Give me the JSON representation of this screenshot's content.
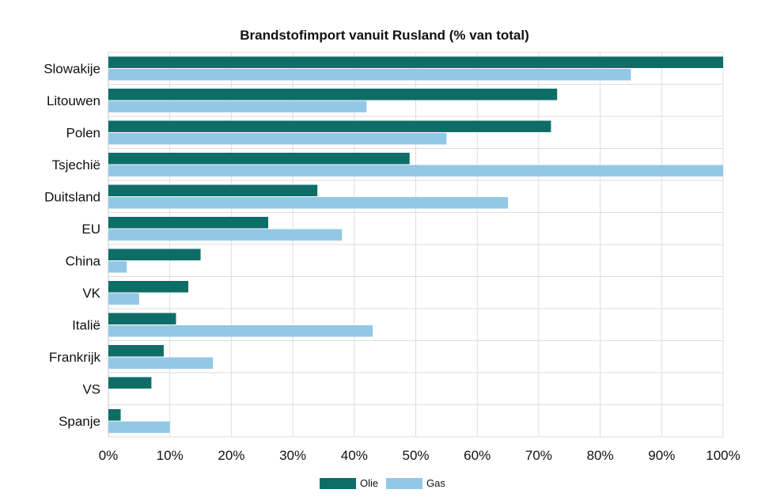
{
  "chart_data": {
    "type": "bar",
    "orientation": "horizontal",
    "title": "Brandstofimport vanuit Rusland (% van total)",
    "categories": [
      "Slowakije",
      "Litouwen",
      "Polen",
      "Tsjechië",
      "Duitsland",
      "EU",
      "China",
      "VK",
      "Italië",
      "Frankrijk",
      "VS",
      "Spanje"
    ],
    "series": [
      {
        "name": "Olie",
        "color": "#0e6e67",
        "values": [
          100,
          73,
          72,
          49,
          34,
          26,
          15,
          13,
          11,
          9,
          7,
          2
        ]
      },
      {
        "name": "Gas",
        "color": "#92c8e6",
        "values": [
          85,
          42,
          55,
          100,
          65,
          38,
          3,
          5,
          43,
          17,
          0,
          10
        ]
      }
    ],
    "xlim": [
      0,
      100
    ],
    "x_ticks": [
      "0%",
      "10%",
      "20%",
      "30%",
      "40%",
      "50%",
      "60%",
      "70%",
      "80%",
      "90%",
      "100%"
    ],
    "grid": true,
    "legend_position": "bottom"
  }
}
